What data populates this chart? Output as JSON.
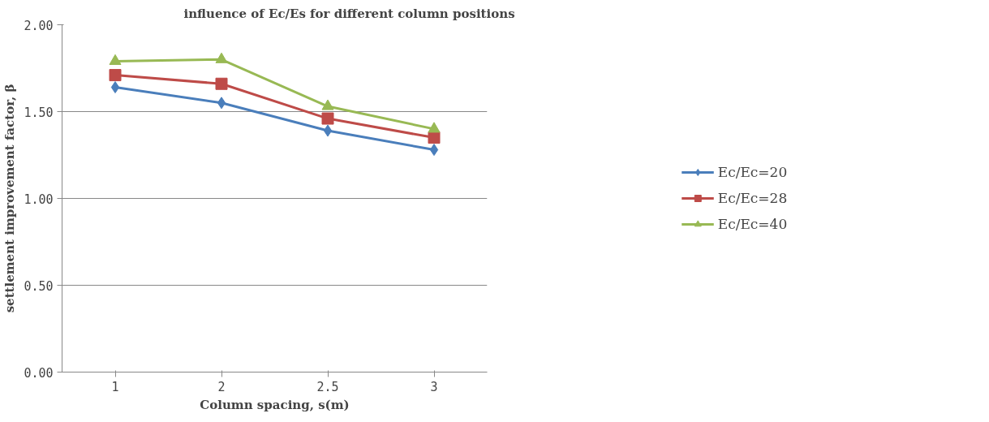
{
  "chart_data": {
    "type": "line",
    "title": "influence of Ec/Es for different  column positions",
    "xlabel": "Column spacing, s(m)",
    "ylabel": "settlement improvement factor, β",
    "categories": [
      "1",
      "2",
      "2.5",
      "3"
    ],
    "series": [
      {
        "name": "Ec/Ec=20",
        "color": "#4a7ebb",
        "marker": "diamond",
        "values": [
          1.64,
          1.55,
          1.39,
          1.28
        ]
      },
      {
        "name": "Ec/Ec=28",
        "color": "#be4b48",
        "marker": "square",
        "values": [
          1.71,
          1.66,
          1.46,
          1.35
        ]
      },
      {
        "name": "Ec/Ec=40",
        "color": "#98b954",
        "marker": "triangle",
        "values": [
          1.79,
          1.8,
          1.53,
          1.4
        ]
      }
    ],
    "ylim": [
      0,
      2
    ],
    "yticks": [
      {
        "value": 0,
        "label": "0.00"
      },
      {
        "value": 0.5,
        "label": "0.50"
      },
      {
        "value": 1,
        "label": "1.00"
      },
      {
        "value": 1.5,
        "label": "1.50"
      },
      {
        "value": 2,
        "label": "2.00"
      }
    ],
    "grid": "y",
    "legend": "right"
  }
}
